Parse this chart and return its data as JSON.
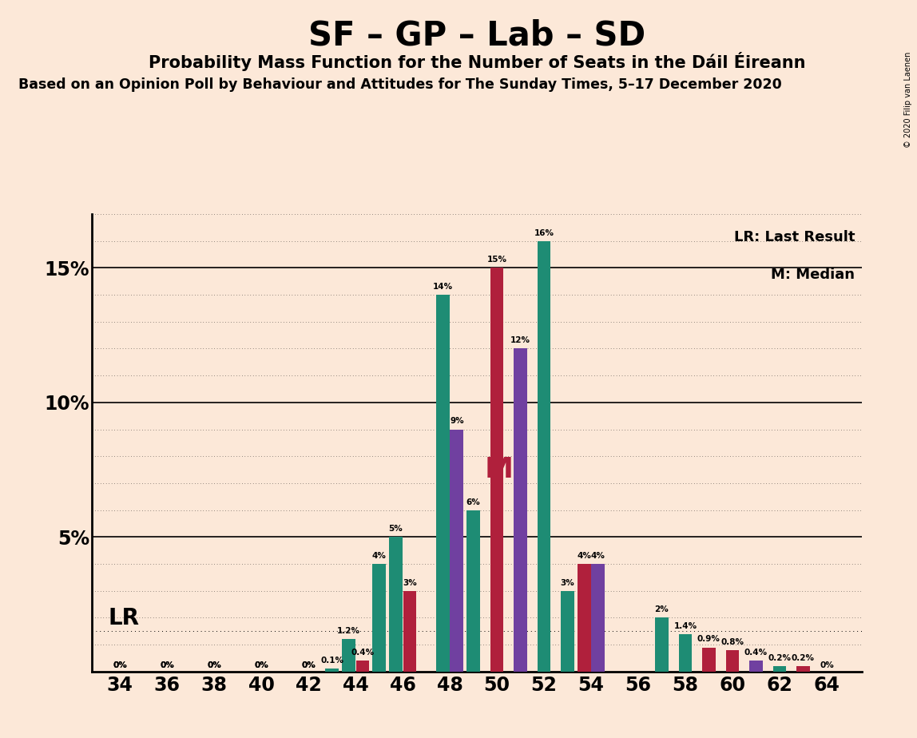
{
  "title": "SF – GP – Lab – SD",
  "subtitle": "Probability Mass Function for the Number of Seats in the Dáil Éireann",
  "subtitle2": "Based on an Opinion Poll by Behaviour and Attitudes for The Sunday Times, 5–17 December 2020",
  "copyright": "© 2020 Filip van Laenen",
  "background_color": "#fce8d8",
  "x_ticks": [
    34,
    36,
    38,
    40,
    42,
    44,
    46,
    48,
    50,
    52,
    54,
    56,
    58,
    60,
    62,
    64
  ],
  "ylim": [
    0,
    17
  ],
  "yticks": [
    0,
    5,
    10,
    15
  ],
  "ytick_labels": [
    "",
    "5%",
    "10%",
    "15%"
  ],
  "lr_line_y": 1.5,
  "median_seat": 50,
  "median_y": 7.5,
  "legend_lr": "LR: Last Result",
  "legend_m": "M: Median",
  "teal": "#1e8c74",
  "red": "#b0203c",
  "purple": "#7040a0",
  "bars": [
    {
      "seat": 34,
      "value": 0.0,
      "color": "teal",
      "label": "0%"
    },
    {
      "seat": 35,
      "value": 0.0,
      "color": "teal",
      "label": null
    },
    {
      "seat": 36,
      "value": 0.0,
      "color": "teal",
      "label": "0%"
    },
    {
      "seat": 37,
      "value": 0.0,
      "color": "teal",
      "label": null
    },
    {
      "seat": 38,
      "value": 0.0,
      "color": "teal",
      "label": "0%"
    },
    {
      "seat": 39,
      "value": 0.0,
      "color": "teal",
      "label": null
    },
    {
      "seat": 40,
      "value": 0.0,
      "color": "teal",
      "label": "0%"
    },
    {
      "seat": 41,
      "value": 0.0,
      "color": "teal",
      "label": null
    },
    {
      "seat": 42,
      "value": 0.0,
      "color": "teal",
      "label": "0%"
    },
    {
      "seat": 43,
      "value": 0.1,
      "color": "teal",
      "label": "0.1%"
    },
    {
      "seat": 44,
      "value": 1.2,
      "color": "teal",
      "label": "1.2%"
    },
    {
      "seat": 44,
      "value": 0.4,
      "color": "red",
      "label": "0.4%"
    },
    {
      "seat": 45,
      "value": 4.0,
      "color": "teal",
      "label": "4%"
    },
    {
      "seat": 46,
      "value": 5.0,
      "color": "teal",
      "label": "5%"
    },
    {
      "seat": 46,
      "value": 3.0,
      "color": "red",
      "label": "3%"
    },
    {
      "seat": 47,
      "value": 0.0,
      "color": "teal",
      "label": null
    },
    {
      "seat": 48,
      "value": 14.0,
      "color": "teal",
      "label": "14%"
    },
    {
      "seat": 48,
      "value": 9.0,
      "color": "purple",
      "label": "9%"
    },
    {
      "seat": 49,
      "value": 6.0,
      "color": "teal",
      "label": "6%"
    },
    {
      "seat": 50,
      "value": 15.0,
      "color": "red",
      "label": "15%"
    },
    {
      "seat": 51,
      "value": 12.0,
      "color": "purple",
      "label": "12%"
    },
    {
      "seat": 52,
      "value": 16.0,
      "color": "teal",
      "label": "16%"
    },
    {
      "seat": 53,
      "value": 3.0,
      "color": "teal",
      "label": "3%"
    },
    {
      "seat": 54,
      "value": 4.0,
      "color": "red",
      "label": "4%"
    },
    {
      "seat": 54,
      "value": 4.0,
      "color": "purple",
      "label": "4%"
    },
    {
      "seat": 55,
      "value": 0.0,
      "color": "teal",
      "label": null
    },
    {
      "seat": 56,
      "value": 0.0,
      "color": "teal",
      "label": null
    },
    {
      "seat": 57,
      "value": 2.0,
      "color": "teal",
      "label": "2%"
    },
    {
      "seat": 58,
      "value": 1.4,
      "color": "teal",
      "label": "1.4%"
    },
    {
      "seat": 59,
      "value": 0.9,
      "color": "red",
      "label": "0.9%"
    },
    {
      "seat": 60,
      "value": 0.8,
      "color": "red",
      "label": "0.8%"
    },
    {
      "seat": 61,
      "value": 0.4,
      "color": "purple",
      "label": "0.4%"
    },
    {
      "seat": 62,
      "value": 0.2,
      "color": "teal",
      "label": "0.2%"
    },
    {
      "seat": 63,
      "value": 0.2,
      "color": "red",
      "label": "0.2%"
    },
    {
      "seat": 64,
      "value": 0.0,
      "color": "teal",
      "label": "0%"
    }
  ],
  "zero_label_seats": [
    34,
    36,
    38,
    40,
    42,
    64
  ]
}
